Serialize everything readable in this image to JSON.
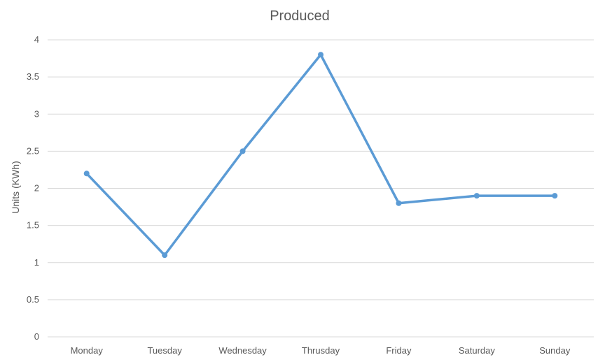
{
  "chart_data": {
    "type": "line",
    "title": "Produced",
    "xlabel": "",
    "ylabel": "Units (KWh)",
    "categories": [
      "Monday",
      "Tuesday",
      "Wednesday",
      "Thrusday",
      "Friday",
      "Saturday",
      "Sunday"
    ],
    "series": [
      {
        "values": [
          2.2,
          1.1,
          2.5,
          3.8,
          1.8,
          1.9,
          1.9
        ],
        "color": "#5b9bd5"
      }
    ],
    "ylim": [
      0,
      4
    ],
    "yticks": [
      "0",
      "0.5",
      "1",
      "1.5",
      "2",
      "2.5",
      "3",
      "3.5",
      "4"
    ],
    "grid": true,
    "legend": "none",
    "colors": {
      "gridline": "#d9d9d9",
      "text": "#595959"
    }
  }
}
